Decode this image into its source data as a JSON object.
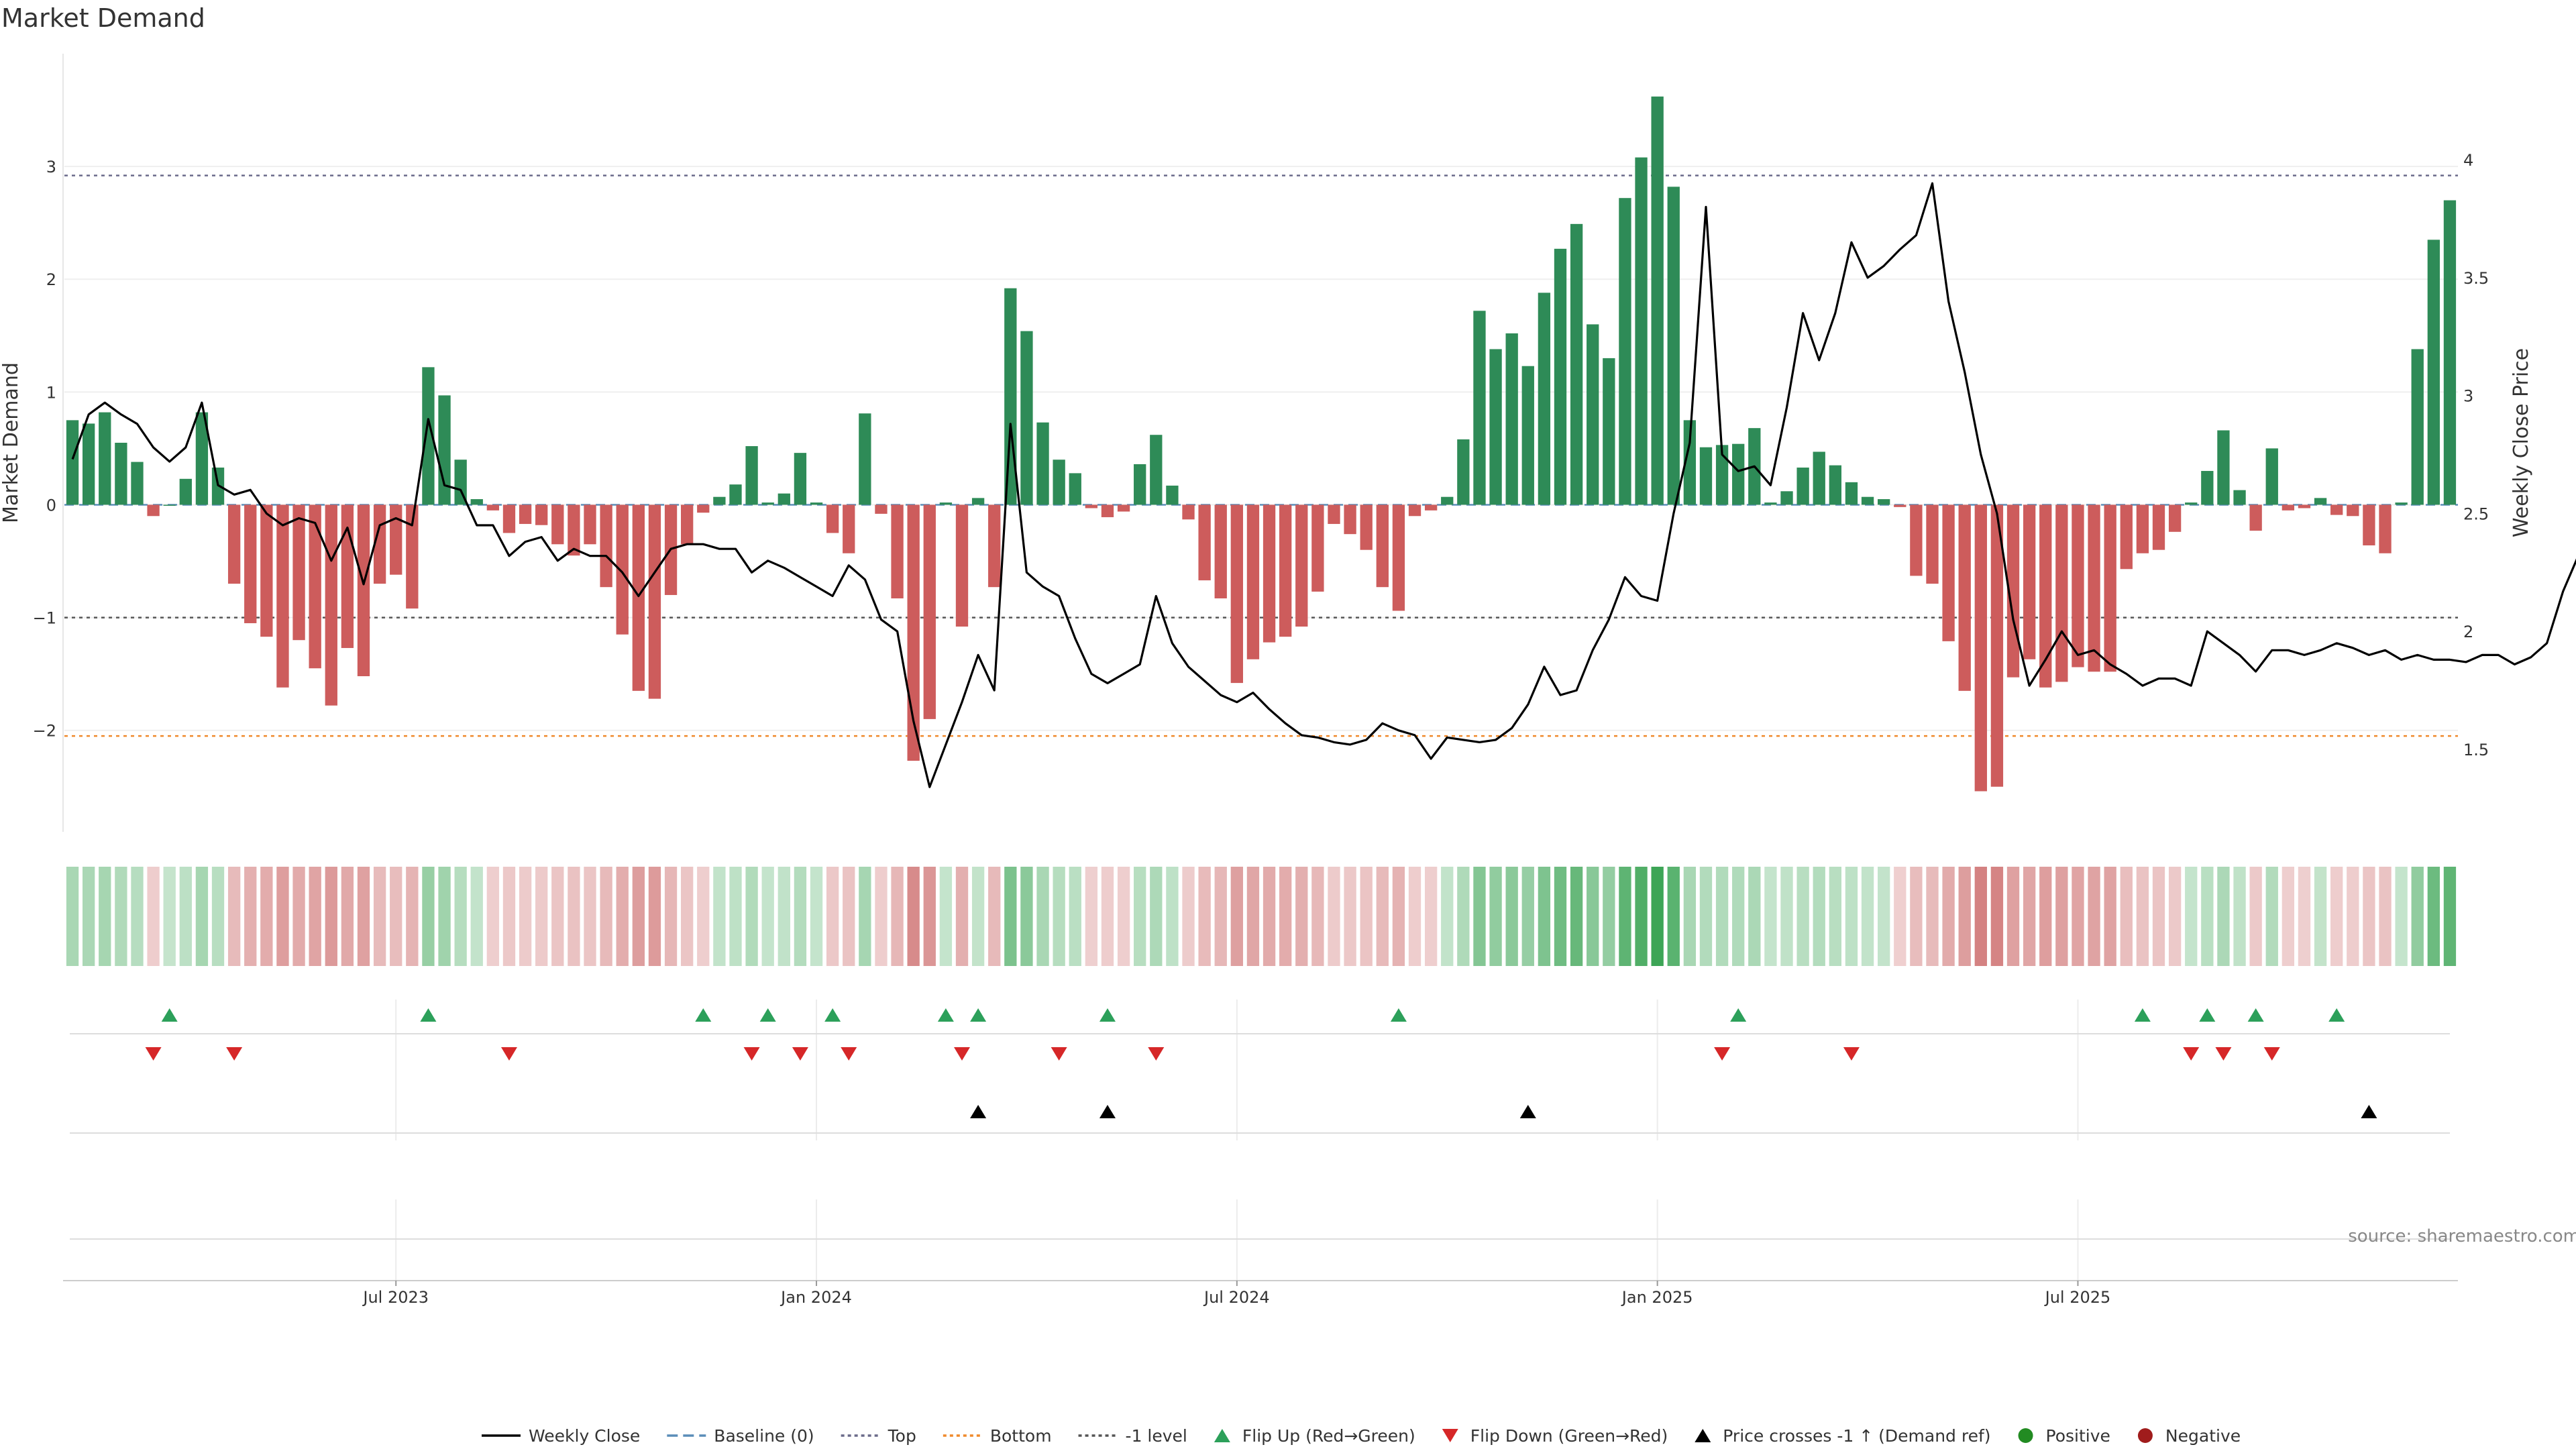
{
  "chart_data": {
    "type": "bar",
    "title": "Market Demand",
    "ylabel": "Market Demand",
    "y2label": "Weekly Close Price",
    "source": "source: sharemaestro.com",
    "ylim": [
      -2.9,
      4.0
    ],
    "y2lim": [
      1.15,
      4.45
    ],
    "yticks": [
      {
        "v": 3,
        "label": "3"
      },
      {
        "v": 2,
        "label": "2"
      },
      {
        "v": 1,
        "label": "1"
      },
      {
        "v": 0,
        "label": "0"
      },
      {
        "v": -1,
        "label": "−1"
      },
      {
        "v": -2,
        "label": "−2"
      }
    ],
    "y2ticks": [
      {
        "v": 4,
        "label": "4"
      },
      {
        "v": 3.5,
        "label": "3.5"
      },
      {
        "v": 3,
        "label": "3"
      },
      {
        "v": 2.5,
        "label": "2.5"
      },
      {
        "v": 2,
        "label": "2"
      },
      {
        "v": 1.5,
        "label": "1.5"
      }
    ],
    "xticks": [
      {
        "i": 20,
        "label": "Jul 2023"
      },
      {
        "i": 46,
        "label": "Jan 2024"
      },
      {
        "i": 72,
        "label": "Jul 2024"
      },
      {
        "i": 98,
        "label": "Jan 2025"
      },
      {
        "i": 124,
        "label": "Jul 2025"
      }
    ],
    "reference_lines": {
      "top": 2.92,
      "minus_one": -1.0,
      "bottom": -2.05
    },
    "series": [
      {
        "name": "Market Demand",
        "values": [
          0.75,
          0.72,
          0.82,
          0.55,
          0.38,
          -0.1,
          0,
          0.23,
          0.82,
          0.33,
          -0.7,
          -1.05,
          -1.17,
          -1.62,
          -1.2,
          -1.45,
          -1.78,
          -1.27,
          -1.52,
          -0.7,
          -0.62,
          -0.92,
          1.22,
          0.97,
          0.4,
          0.05,
          -0.05,
          -0.25,
          -0.17,
          -0.18,
          -0.35,
          -0.45,
          -0.35,
          -0.73,
          -1.15,
          -1.65,
          -1.72,
          -0.8,
          -0.35,
          -0.07,
          0.07,
          0.18,
          0.52,
          0.02,
          0.1,
          0.46,
          0.02,
          -0.25,
          -0.43,
          0.81,
          -0.08,
          -0.83,
          -2.27,
          -1.9,
          0.02,
          -1.08,
          0.06,
          -0.73,
          1.92,
          1.54,
          0.73,
          0.4,
          0.28,
          -0.03,
          -0.11,
          -0.06,
          0.36,
          0.62,
          0.17,
          -0.13,
          -0.67,
          -0.83,
          -1.58,
          -1.37,
          -1.22,
          -1.17,
          -1.08,
          -0.77,
          -0.17,
          -0.26,
          -0.4,
          -0.73,
          -0.94,
          -0.1,
          -0.05,
          0.07,
          0.58,
          1.72,
          1.38,
          1.52,
          1.23,
          1.88,
          2.27,
          2.49,
          1.6,
          1.3,
          2.72,
          3.08,
          3.62,
          2.82,
          0.75,
          0.51,
          0.53,
          0.54,
          0.68,
          0.02,
          0.12,
          0.33,
          0.47,
          0.35,
          0.2,
          0.07,
          0.05,
          -0.02,
          -0.63,
          -0.7,
          -1.21,
          -1.65,
          -2.54,
          -2.5,
          -1.53,
          -1.37,
          -1.62,
          -1.57,
          -1.44,
          -1.48,
          -1.48,
          -0.57,
          -0.43,
          -0.4,
          -0.24,
          0.02,
          0.3,
          0.66,
          0.13,
          -0.23,
          0.5,
          -0.05,
          -0.03,
          0.06,
          -0.09,
          -0.1,
          -0.36,
          -0.43,
          0.02,
          1.38,
          2.35,
          2.7
        ]
      },
      {
        "name": "Weekly Close",
        "values": [
          2.73,
          2.92,
          2.97,
          2.92,
          2.88,
          2.78,
          2.72,
          2.78,
          2.97,
          2.62,
          2.58,
          2.6,
          2.5,
          2.45,
          2.48,
          2.46,
          2.3,
          2.44,
          2.2,
          2.45,
          2.48,
          2.45,
          2.9,
          2.62,
          2.6,
          2.45,
          2.45,
          2.32,
          2.38,
          2.4,
          2.3,
          2.35,
          2.32,
          2.32,
          2.25,
          2.15,
          2.25,
          2.35,
          2.37,
          2.37,
          2.35,
          2.35,
          2.25,
          2.3,
          2.27,
          2.23,
          2.19,
          2.15,
          2.28,
          2.22,
          2.05,
          2.0,
          1.62,
          1.34,
          1.52,
          1.7,
          1.9,
          1.75,
          2.88,
          2.25,
          2.19,
          2.15,
          1.97,
          1.82,
          1.78,
          1.82,
          1.86,
          2.15,
          1.95,
          1.85,
          1.79,
          1.73,
          1.7,
          1.74,
          1.67,
          1.61,
          1.56,
          1.55,
          1.53,
          1.52,
          1.54,
          1.61,
          1.58,
          1.56,
          1.46,
          1.55,
          1.54,
          1.53,
          1.54,
          1.59,
          1.69,
          1.85,
          1.73,
          1.75,
          1.92,
          2.05,
          2.23,
          2.15,
          2.13,
          2.5,
          2.8,
          3.8,
          2.75,
          2.68,
          2.7,
          2.62,
          2.95,
          3.35,
          3.15,
          3.35,
          3.65,
          3.5,
          3.55,
          3.62,
          3.68,
          3.9,
          3.4,
          3.1,
          2.75,
          2.5,
          2.05,
          1.77,
          1.88,
          2.0,
          1.9,
          1.92,
          1.86,
          1.82,
          1.77,
          1.8,
          1.8,
          1.77,
          2.0,
          1.95,
          1.9,
          1.83,
          1.92,
          1.92,
          1.9,
          1.92,
          1.95,
          1.93,
          1.9,
          1.92,
          1.88,
          1.9,
          1.88,
          1.88,
          1.87,
          1.9,
          1.9,
          1.86,
          1.89,
          1.95,
          2.17,
          2.33
        ]
      }
    ],
    "flip_up_indices": [
      6,
      22,
      39,
      43,
      47,
      54,
      56,
      64,
      82,
      103,
      128,
      132,
      135,
      140
    ],
    "flip_down_indices": [
      5,
      10,
      27,
      42,
      45,
      48,
      55,
      61,
      67,
      102,
      110,
      131,
      133,
      136
    ],
    "price_cross_indices": [
      56,
      64,
      90,
      142
    ]
  },
  "legend": [
    {
      "label": "Weekly Close",
      "icon": "solid-line",
      "color": "#000000"
    },
    {
      "label": "Baseline (0)",
      "icon": "dashed-line",
      "color": "#5b8db8"
    },
    {
      "label": "Top",
      "icon": "dotted-line",
      "color": "#6b6b8a"
    },
    {
      "label": "Bottom",
      "icon": "dotted-line",
      "color": "#f08a2c"
    },
    {
      "label": "-1 level",
      "icon": "dotted-line",
      "color": "#555555"
    },
    {
      "label": "Flip Up (Red→Green)",
      "icon": "triangle-up",
      "color": "#2ca05a"
    },
    {
      "label": "Flip Down (Green→Red)",
      "icon": "triangle-down",
      "color": "#d62728"
    },
    {
      "label": "Price crosses -1 ↑ (Demand ref)",
      "icon": "triangle-up",
      "color": "#000000"
    },
    {
      "label": "Positive",
      "icon": "circle",
      "color": "#228b22"
    },
    {
      "label": "Negative",
      "icon": "circle",
      "color": "#a01c1c"
    }
  ],
  "colors": {
    "positive": "#2e8b57",
    "negative": "#cd5c5c",
    "price": "#000000",
    "top": "#6b6b8a",
    "bottom": "#f08a2c",
    "minus_one": "#555555",
    "baseline": "#5b8db8"
  }
}
